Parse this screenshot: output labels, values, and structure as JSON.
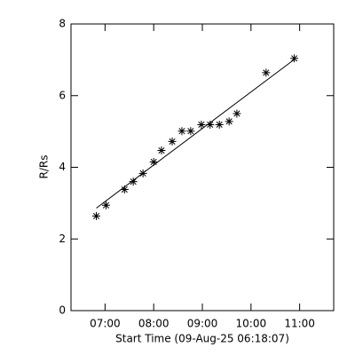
{
  "chart_data": {
    "type": "scatter",
    "xlabel": "Start Time (09-Aug-25 06:18:07)",
    "ylabel": "R/Rs",
    "xlim": [
      6.3,
      11.7
    ],
    "ylim": [
      0,
      8
    ],
    "xticks": [
      {
        "value": 7,
        "label": "07:00"
      },
      {
        "value": 8,
        "label": "08:00"
      },
      {
        "value": 9,
        "label": "09:00"
      },
      {
        "value": 10,
        "label": "10:00"
      },
      {
        "value": 11,
        "label": "11:00"
      }
    ],
    "yticks": [
      0,
      2,
      4,
      6,
      8
    ],
    "color": "#000000",
    "x": [
      6.82,
      7.02,
      7.4,
      7.58,
      7.78,
      8.0,
      8.16,
      8.38,
      8.58,
      8.76,
      8.98,
      9.16,
      9.35,
      9.55,
      9.71,
      10.31,
      10.89
    ],
    "values": [
      2.64,
      2.94,
      3.38,
      3.6,
      3.83,
      4.15,
      4.47,
      4.72,
      5.01,
      5.01,
      5.19,
      5.19,
      5.19,
      5.28,
      5.5,
      6.64,
      7.04
    ],
    "fit": {
      "x": [
        6.82,
        10.89
      ],
      "values": [
        2.86,
        7.01
      ]
    }
  }
}
